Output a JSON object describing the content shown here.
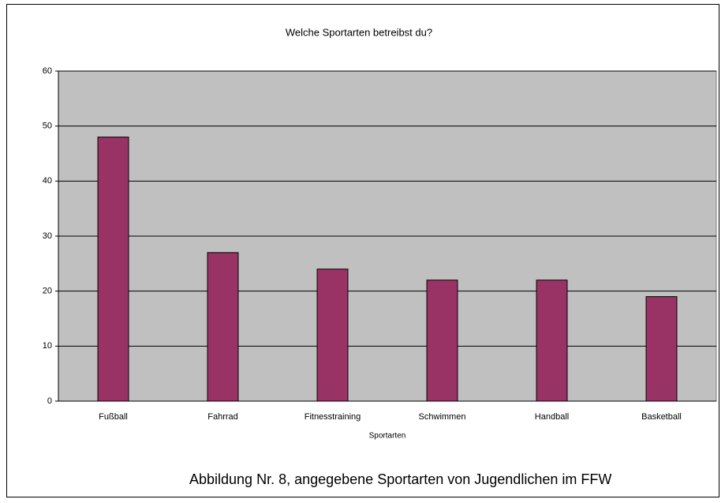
{
  "chart_data": {
    "type": "bar",
    "title": "Welche Sportarten betreibst du?",
    "x_label": "Sportarten",
    "caption": "Abbildung Nr. 8,  angegebene Sportarten von Jugendlichen im FFW",
    "categories": [
      "Fußball",
      "Fahrrad",
      "Fitnesstraining",
      "Schwimmen",
      "Handball",
      "Basketball"
    ],
    "values": [
      48,
      27,
      24,
      22,
      22,
      19
    ],
    "color": "#993366",
    "ylim": [
      0,
      60
    ],
    "yticks": [
      0,
      10,
      20,
      30,
      40,
      50,
      60
    ],
    "grid": true
  }
}
